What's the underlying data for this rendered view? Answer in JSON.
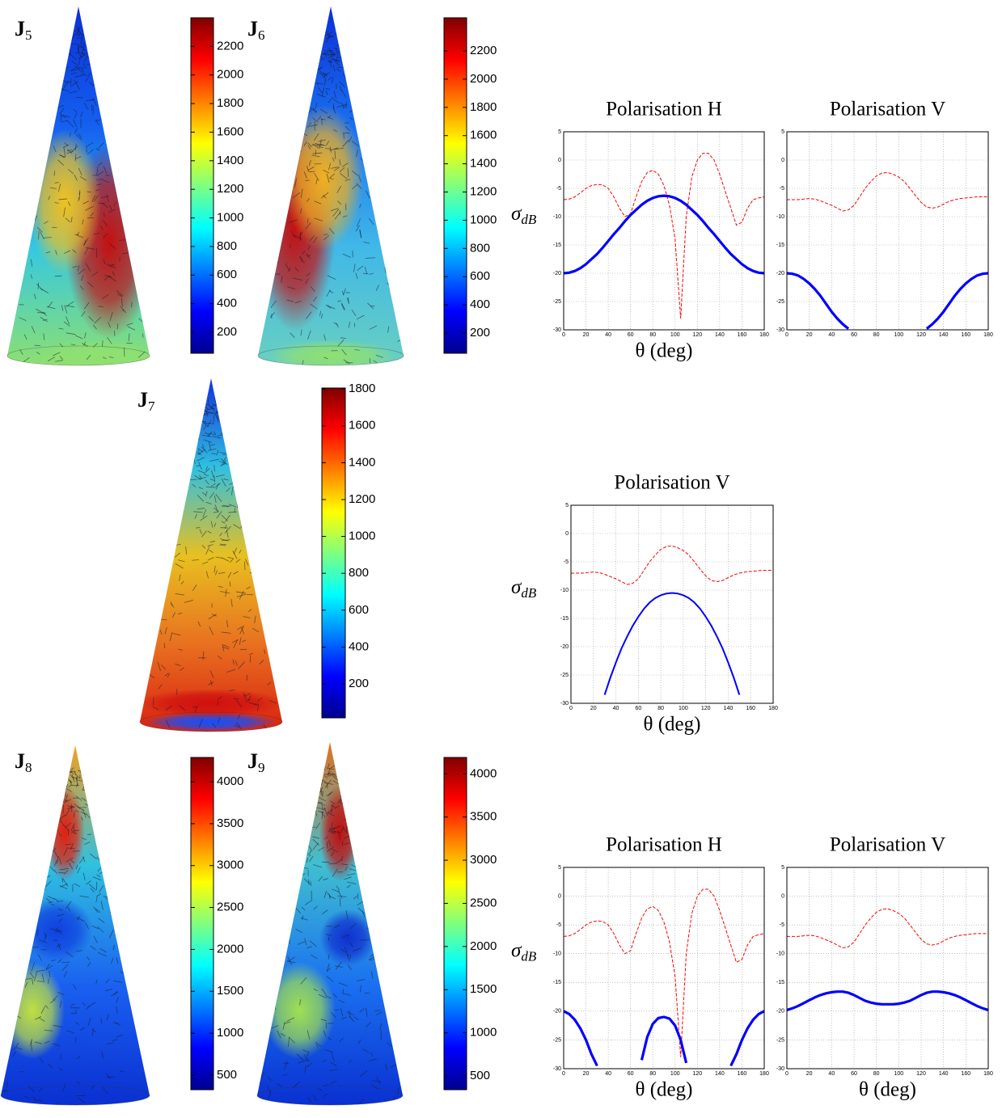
{
  "chart_data": [
    {
      "type": "colorbar",
      "label": "J",
      "label_subscript": "5",
      "ylim": [
        53,
        2400
      ],
      "yticks": [
        200,
        400,
        600,
        800,
        1000,
        1200,
        1400,
        1600,
        1800,
        2000,
        2200
      ]
    },
    {
      "type": "colorbar",
      "label": "J",
      "label_subscript": "6",
      "ylim": [
        57,
        2435
      ],
      "yticks": [
        200,
        400,
        600,
        800,
        1000,
        1200,
        1400,
        1600,
        1800,
        2000,
        2200
      ]
    },
    {
      "type": "line",
      "title": "Polarisation H",
      "x_label": "θ (deg)",
      "y_label": "σ",
      "y_label_subscript": "dB",
      "x": [
        0,
        5,
        10,
        15,
        20,
        25,
        30,
        35,
        40,
        45,
        50,
        55,
        60,
        65,
        70,
        75,
        80,
        85,
        90,
        95,
        100,
        105,
        110,
        115,
        120,
        125,
        130,
        135,
        140,
        145,
        150,
        155,
        160,
        165,
        170,
        175,
        180
      ],
      "xlim": [
        0,
        180
      ],
      "xticks": [
        0,
        20,
        40,
        60,
        80,
        100,
        120,
        140,
        160,
        180
      ],
      "ylim": [
        -30,
        5
      ],
      "yticks": [
        -30,
        -25,
        -20,
        -15,
        -10,
        -5,
        0,
        5
      ],
      "grid": true,
      "series": [
        {
          "color": "#ff0000",
          "linestyle": "dashed",
          "values": [
            -7,
            -6.9,
            -6.5,
            -5.8,
            -5,
            -4.5,
            -4.3,
            -4.4,
            -5,
            -6.5,
            -8.5,
            -10,
            -9.5,
            -6.5,
            -3.8,
            -2.2,
            -1.8,
            -2.5,
            -4.5,
            -8,
            -14,
            -28,
            -10,
            -3,
            0,
            1.2,
            1.2,
            0,
            -2.5,
            -5.5,
            -8.5,
            -11.5,
            -11,
            -8.5,
            -7,
            -6.7,
            -6.5
          ]
        },
        {
          "color": "#0000ff",
          "linestyle": "solid",
          "values": [
            -20,
            -19.9,
            -19.6,
            -19.1,
            -18.4,
            -17.5,
            -16.6,
            -15.5,
            -14.3,
            -13.1,
            -12,
            -10.8,
            -9.7,
            -8.8,
            -7.9,
            -7.2,
            -6.7,
            -6.4,
            -6.3,
            -6.4,
            -6.7,
            -7.2,
            -7.9,
            -8.8,
            -9.7,
            -10.8,
            -12,
            -13.1,
            -14.3,
            -15.5,
            -16.6,
            -17.5,
            -18.4,
            -19.1,
            -19.6,
            -19.9,
            -20
          ]
        }
      ]
    },
    {
      "type": "line",
      "title": "Polarisation V",
      "x": [
        0,
        5,
        10,
        15,
        20,
        25,
        30,
        35,
        40,
        45,
        50,
        55,
        60,
        65,
        70,
        75,
        80,
        85,
        90,
        95,
        100,
        105,
        110,
        115,
        120,
        125,
        130,
        135,
        140,
        145,
        150,
        155,
        160,
        165,
        170,
        175,
        180
      ],
      "xlim": [
        0,
        180
      ],
      "xticks": [
        0,
        20,
        40,
        60,
        80,
        100,
        120,
        140,
        160,
        180
      ],
      "ylim": [
        -30,
        5
      ],
      "yticks": [
        -30,
        -25,
        -20,
        -15,
        -10,
        -5,
        0,
        5
      ],
      "grid": true,
      "series": [
        {
          "color": "#ff0000",
          "linestyle": "dashed",
          "values": [
            -7,
            -7,
            -7,
            -6.9,
            -6.8,
            -6.9,
            -7.2,
            -7.6,
            -8,
            -8.5,
            -9,
            -8.8,
            -8,
            -6.5,
            -5,
            -3.8,
            -2.8,
            -2.3,
            -2.2,
            -2.5,
            -3,
            -3.8,
            -5,
            -6.3,
            -7.5,
            -8.3,
            -8.5,
            -8.3,
            -7.8,
            -7.3,
            -7,
            -6.8,
            -6.7,
            -6.6,
            -6.5,
            -6.5,
            -6.5
          ]
        },
        {
          "color": "#0000ff",
          "linestyle": "solid",
          "values": [
            -20,
            -20.1,
            -20.4,
            -21,
            -21.8,
            -22.8,
            -24,
            -25.4,
            -26.8,
            -28,
            -29,
            -29.8,
            null,
            null,
            null,
            null,
            null,
            null,
            null,
            null,
            null,
            null,
            null,
            null,
            null,
            -29.8,
            -29,
            -28,
            -26.8,
            -25.4,
            -24,
            -22.8,
            -21.8,
            -21,
            -20.4,
            -20.1,
            -20
          ]
        }
      ]
    },
    {
      "type": "colorbar",
      "label": "J",
      "label_subscript": "7",
      "ylim": [
        16,
        1805
      ],
      "yticks": [
        200,
        400,
        600,
        800,
        1000,
        1200,
        1400,
        1600,
        1800
      ]
    },
    {
      "type": "line",
      "title": "Polarisation V",
      "x_label": "θ (deg)",
      "y_label": "σ",
      "y_label_subscript": "dB",
      "x": [
        0,
        5,
        10,
        15,
        20,
        25,
        30,
        35,
        40,
        45,
        50,
        55,
        60,
        65,
        70,
        75,
        80,
        85,
        90,
        95,
        100,
        105,
        110,
        115,
        120,
        125,
        130,
        135,
        140,
        145,
        150,
        155,
        160,
        165,
        170,
        175,
        180
      ],
      "xlim": [
        0,
        180
      ],
      "xticks": [
        0,
        20,
        40,
        60,
        80,
        100,
        120,
        140,
        160,
        180
      ],
      "ylim": [
        -30,
        5
      ],
      "yticks": [
        -30,
        -25,
        -20,
        -15,
        -10,
        -5,
        0,
        5
      ],
      "grid": true,
      "series": [
        {
          "color": "#ff0000",
          "linestyle": "dashed",
          "values": [
            -7,
            -7,
            -7,
            -6.9,
            -6.8,
            -6.9,
            -7.2,
            -7.6,
            -8,
            -8.5,
            -9,
            -8.8,
            -8,
            -6.5,
            -5,
            -3.8,
            -2.8,
            -2.3,
            -2.2,
            -2.5,
            -3,
            -3.8,
            -5,
            -6.3,
            -7.5,
            -8.3,
            -8.5,
            -8.3,
            -7.8,
            -7.3,
            -7,
            -6.8,
            -6.7,
            -6.6,
            -6.5,
            -6.5,
            -6.5
          ]
        },
        {
          "color": "#0000ff",
          "linestyle": "solid",
          "values": [
            null,
            null,
            null,
            null,
            null,
            null,
            -28.5,
            -25.5,
            -22.8,
            -20.3,
            -18.2,
            -16.3,
            -14.7,
            -13.3,
            -12.2,
            -11.4,
            -10.9,
            -10.6,
            -10.5,
            -10.6,
            -10.9,
            -11.4,
            -12.2,
            -13.3,
            -14.7,
            -16.3,
            -18.2,
            -20.3,
            -22.8,
            -25.5,
            -28.5,
            null,
            null,
            null,
            null,
            null,
            null
          ]
        }
      ]
    },
    {
      "type": "colorbar",
      "label": "J",
      "label_subscript": "8",
      "ylim": [
        326,
        4290
      ],
      "yticks": [
        500,
        1000,
        1500,
        2000,
        2500,
        3000,
        3500,
        4000
      ]
    },
    {
      "type": "colorbar",
      "label": "J",
      "label_subscript": "9",
      "ylim": [
        341,
        4190
      ],
      "yticks": [
        500,
        1000,
        1500,
        2000,
        2500,
        3000,
        3500,
        4000
      ]
    },
    {
      "type": "line",
      "title": "Polarisation H",
      "x_label": "θ (deg)",
      "y_label": "σ",
      "y_label_subscript": "dB",
      "x": [
        0,
        5,
        10,
        15,
        20,
        25,
        30,
        35,
        40,
        45,
        50,
        55,
        60,
        65,
        70,
        75,
        80,
        85,
        90,
        95,
        100,
        105,
        110,
        115,
        120,
        125,
        130,
        135,
        140,
        145,
        150,
        155,
        160,
        165,
        170,
        175,
        180
      ],
      "xlim": [
        0,
        180
      ],
      "xticks": [
        0,
        20,
        40,
        60,
        80,
        100,
        120,
        140,
        160,
        180
      ],
      "ylim": [
        -30,
        5
      ],
      "yticks": [
        -30,
        -25,
        -20,
        -15,
        -10,
        -5,
        0,
        5
      ],
      "grid": true,
      "series": [
        {
          "color": "#ff0000",
          "linestyle": "dashed",
          "values": [
            -7,
            -6.9,
            -6.5,
            -5.8,
            -5,
            -4.5,
            -4.3,
            -4.4,
            -5,
            -6.5,
            -8.5,
            -10,
            -9.5,
            -6.5,
            -3.8,
            -2.2,
            -1.8,
            -2.5,
            -4.5,
            -8,
            -14,
            -28,
            -10,
            -3,
            0,
            1.2,
            1.2,
            0,
            -2.5,
            -5.5,
            -8.5,
            -11.5,
            -11,
            -8.5,
            -7,
            -6.7,
            -6.5
          ]
        },
        {
          "color": "#0000ff",
          "linestyle": "solid",
          "values": [
            -20,
            -20.5,
            -21.5,
            -23,
            -25,
            -27.5,
            -29.5,
            null,
            null,
            null,
            null,
            null,
            null,
            null,
            -28.5,
            -24.5,
            -22.2,
            -21.2,
            -21,
            -21.3,
            -22.5,
            -25,
            -29,
            null,
            null,
            null,
            null,
            null,
            null,
            null,
            -29.5,
            -27.5,
            -25,
            -23,
            -21.5,
            -20.5,
            -20
          ]
        }
      ]
    },
    {
      "type": "line",
      "title": "Polarisation V",
      "x_label": "θ (deg)",
      "x": [
        0,
        5,
        10,
        15,
        20,
        25,
        30,
        35,
        40,
        45,
        50,
        55,
        60,
        65,
        70,
        75,
        80,
        85,
        90,
        95,
        100,
        105,
        110,
        115,
        120,
        125,
        130,
        135,
        140,
        145,
        150,
        155,
        160,
        165,
        170,
        175,
        180
      ],
      "xlim": [
        0,
        180
      ],
      "xticks": [
        0,
        20,
        40,
        60,
        80,
        100,
        120,
        140,
        160,
        180
      ],
      "ylim": [
        -30,
        5
      ],
      "yticks": [
        -30,
        -25,
        -20,
        -15,
        -10,
        -5,
        0,
        5
      ],
      "grid": true,
      "series": [
        {
          "color": "#ff0000",
          "linestyle": "dashed",
          "values": [
            -7,
            -7,
            -7,
            -6.9,
            -6.8,
            -6.9,
            -7.2,
            -7.6,
            -8,
            -8.5,
            -9,
            -8.8,
            -8,
            -6.5,
            -5,
            -3.8,
            -2.8,
            -2.3,
            -2.2,
            -2.5,
            -3,
            -3.8,
            -5,
            -6.3,
            -7.5,
            -8.3,
            -8.5,
            -8.3,
            -7.8,
            -7.3,
            -7,
            -6.8,
            -6.7,
            -6.6,
            -6.5,
            -6.5,
            -6.5
          ]
        },
        {
          "color": "#0000ff",
          "linestyle": "solid",
          "values": [
            -19.8,
            -19.5,
            -19.1,
            -18.6,
            -18.1,
            -17.6,
            -17.2,
            -16.9,
            -16.7,
            -16.6,
            -16.6,
            -16.8,
            -17.2,
            -17.7,
            -18.2,
            -18.5,
            -18.7,
            -18.8,
            -18.8,
            -18.8,
            -18.7,
            -18.5,
            -18.2,
            -17.7,
            -17.2,
            -16.8,
            -16.6,
            -16.6,
            -16.7,
            -16.9,
            -17.2,
            -17.6,
            -18.1,
            -18.6,
            -19.1,
            -19.5,
            -19.8
          ]
        }
      ]
    }
  ]
}
